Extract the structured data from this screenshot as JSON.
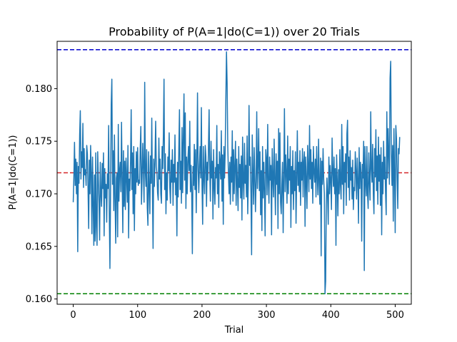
{
  "chart_data": {
    "type": "line",
    "title": "Probability of P(A=1|do(C=1)) over 20 Trials",
    "xlabel": "Trial",
    "ylabel": "P(A=1|do(C=1))",
    "xlim": [
      -25,
      525
    ],
    "ylim": [
      0.1595,
      0.1845
    ],
    "xticks": [
      0,
      100,
      200,
      300,
      400,
      500
    ],
    "yticks": [
      0.16,
      0.165,
      0.17,
      0.175,
      0.18
    ],
    "ytick_labels": [
      "0.160",
      "0.165",
      "0.170",
      "0.175",
      "0.180"
    ],
    "grid": false,
    "legend": "none",
    "series": [
      {
        "color": "#1f77b4",
        "x_start": 0,
        "x_step": 1,
        "y": [
          0.1692,
          0.1716,
          0.1749,
          0.1708,
          0.1733,
          0.17,
          0.173,
          0.1645,
          0.1726,
          0.171,
          0.1756,
          0.1779,
          0.1714,
          0.174,
          0.1725,
          0.1767,
          0.1706,
          0.1743,
          0.1718,
          0.1723,
          0.1708,
          0.1746,
          0.1738,
          0.1705,
          0.1667,
          0.1732,
          0.17,
          0.1746,
          0.172,
          0.1662,
          0.1735,
          0.169,
          0.1651,
          0.1718,
          0.1655,
          0.1739,
          0.1669,
          0.1651,
          0.174,
          0.1715,
          0.1691,
          0.1656,
          0.173,
          0.17,
          0.1688,
          0.1729,
          0.1705,
          0.1739,
          0.166,
          0.1724,
          0.1696,
          0.1709,
          0.1673,
          0.1719,
          0.1705,
          0.1765,
          0.1684,
          0.1629,
          0.1702,
          0.1785,
          0.1809,
          0.1709,
          0.1741,
          0.1684,
          0.1756,
          0.1694,
          0.1653,
          0.1715,
          0.172,
          0.1659,
          0.1766,
          0.1693,
          0.1722,
          0.173,
          0.1702,
          0.1768,
          0.1715,
          0.1663,
          0.1741,
          0.1688,
          0.1731,
          0.1685,
          0.1734,
          0.1716,
          0.1692,
          0.1746,
          0.1658,
          0.1714,
          0.1703,
          0.173,
          0.178,
          0.1704,
          0.1739,
          0.1681,
          0.1745,
          0.1665,
          0.1724,
          0.17,
          0.174,
          0.1711,
          0.1744,
          0.1708,
          0.1713,
          0.171,
          0.1742,
          0.1764,
          0.169,
          0.1717,
          0.1748,
          0.1723,
          0.1692,
          0.1806,
          0.1721,
          0.1707,
          0.1742,
          0.1687,
          0.167,
          0.174,
          0.1706,
          0.1681,
          0.1736,
          0.171,
          0.1772,
          0.1702,
          0.1648,
          0.1733,
          0.1707,
          0.1732,
          0.1769,
          0.1726,
          0.1719,
          0.1701,
          0.1694,
          0.1753,
          0.1714,
          0.1733,
          0.17,
          0.1691,
          0.1745,
          0.1724,
          0.1756,
          0.1809,
          0.1704,
          0.1738,
          0.1681,
          0.172,
          0.1694,
          0.1735,
          0.1722,
          0.1758,
          0.1706,
          0.1691,
          0.1732,
          0.1711,
          0.1742,
          0.1689,
          0.1728,
          0.1711,
          0.1756,
          0.1699,
          0.1715,
          0.166,
          0.173,
          0.1697,
          0.1742,
          0.178,
          0.1704,
          0.1731,
          0.1691,
          0.1763,
          0.1701,
          0.1754,
          0.1795,
          0.1713,
          0.1777,
          0.1686,
          0.1735,
          0.17,
          0.1731,
          0.1745,
          0.1722,
          0.1769,
          0.1702,
          0.1727,
          0.17,
          0.1643,
          0.1726,
          0.1708,
          0.1747,
          0.1704,
          0.1742,
          0.1682,
          0.1731,
          0.1796,
          0.1723,
          0.1701,
          0.1727,
          0.1745,
          0.1715,
          0.1782,
          0.1708,
          0.1671,
          0.1745,
          0.1716,
          0.17,
          0.1746,
          0.1736,
          0.1688,
          0.173,
          0.1713,
          0.1743,
          0.178,
          0.1722,
          0.1693,
          0.175,
          0.1715,
          0.1731,
          0.1676,
          0.1742,
          0.1707,
          0.169,
          0.1725,
          0.1715,
          0.1765,
          0.17,
          0.1728,
          0.1687,
          0.174,
          0.173,
          0.1714,
          0.176,
          0.1693,
          0.1737,
          0.1671,
          0.1745,
          0.1715,
          0.174,
          0.179,
          0.1835,
          0.1805,
          0.1745,
          0.172,
          0.17,
          0.173,
          0.169,
          0.1735,
          0.1711,
          0.176,
          0.1693,
          0.1742,
          0.17,
          0.1726,
          0.175,
          0.1689,
          0.1733,
          0.171,
          0.1684,
          0.1745,
          0.1706,
          0.1728,
          0.1696,
          0.1736,
          0.1675,
          0.1754,
          0.1712,
          0.1695,
          0.1748,
          0.171,
          0.1727,
          0.1697,
          0.1755,
          0.1681,
          0.1714,
          0.1784,
          0.1727,
          0.1735,
          0.17,
          0.1642,
          0.1756,
          0.1721,
          0.169,
          0.1744,
          0.1715,
          0.1683,
          0.1712,
          0.1778,
          0.1705,
          0.1728,
          0.1762,
          0.1703,
          0.174,
          0.168,
          0.1722,
          0.1665,
          0.1745,
          0.1696,
          0.173,
          0.1702,
          0.166,
          0.1742,
          0.1733,
          0.1699,
          0.1766,
          0.1711,
          0.1691,
          0.1735,
          0.1713,
          0.1727,
          0.1661,
          0.1743,
          0.1714,
          0.1697,
          0.1752,
          0.1714,
          0.168,
          0.1738,
          0.1709,
          0.1731,
          0.1667,
          0.1762,
          0.17,
          0.1758,
          0.1692,
          0.1681,
          0.1708,
          0.173,
          0.1663,
          0.1715,
          0.1781,
          0.1702,
          0.1737,
          0.1719,
          0.1691,
          0.1755,
          0.17,
          0.1733,
          0.1713,
          0.1745,
          0.1668,
          0.1726,
          0.17,
          0.1741,
          0.1685,
          0.1722,
          0.1703,
          0.174,
          0.1672,
          0.1715,
          0.176,
          0.1708,
          0.173,
          0.1702,
          0.1741,
          0.1689,
          0.173,
          0.1713,
          0.1743,
          0.1697,
          0.1731,
          0.174,
          0.1669,
          0.1735,
          0.1713,
          0.1686,
          0.1746,
          0.1724,
          0.1702,
          0.1765,
          0.1714,
          0.1742,
          0.1705,
          0.173,
          0.1691,
          0.1745,
          0.1721,
          0.1711,
          0.1733,
          0.1697,
          0.1745,
          0.1716,
          0.1699,
          0.1752,
          0.1711,
          0.169,
          0.1734,
          0.1641,
          0.1731,
          0.1709,
          0.1743,
          0.1714,
          0.17,
          0.1605,
          0.1617,
          0.169,
          0.1715,
          0.1698,
          0.1671,
          0.1735,
          0.17,
          0.1727,
          0.1712,
          0.1685,
          0.1753,
          0.1722,
          0.1707,
          0.1735,
          0.17,
          0.1724,
          0.1651,
          0.1737,
          0.1712,
          0.1679,
          0.1723,
          0.17,
          0.1742,
          0.1708,
          0.1695,
          0.1766,
          0.1709,
          0.1745,
          0.1681,
          0.173,
          0.1711,
          0.1738,
          0.1689,
          0.1757,
          0.177,
          0.1706,
          0.1735,
          0.1694,
          0.1741,
          0.1713,
          0.1725,
          0.1695,
          0.1732,
          0.1685,
          0.1706,
          0.1703,
          0.174,
          0.1722,
          0.1695,
          0.1734,
          0.1713,
          0.1672,
          0.1744,
          0.1705,
          0.173,
          0.1719,
          0.1655,
          0.1728,
          0.1715,
          0.175,
          0.1627,
          0.1745,
          0.1714,
          0.1698,
          0.1745,
          0.17,
          0.1686,
          0.1739,
          0.1712,
          0.1694,
          0.1778,
          0.1724,
          0.1711,
          0.1747,
          0.17,
          0.1681,
          0.1743,
          0.1716,
          0.1761,
          0.1703,
          0.1736,
          0.169,
          0.1754,
          0.1712,
          0.1737,
          0.1689,
          0.1744,
          0.1661,
          0.173,
          0.17,
          0.175,
          0.1714,
          0.1735,
          0.1702,
          0.168,
          0.1778,
          0.1715,
          0.1762,
          0.1738,
          0.1709,
          0.181,
          0.1826,
          0.1738,
          0.1708,
          0.1746,
          0.1674,
          0.1762,
          0.172,
          0.1663,
          0.1765,
          0.1752,
          0.1713,
          0.1686,
          0.1743,
          0.1738,
          0.1754
        ]
      }
    ],
    "reference_lines": [
      {
        "y": 0.1837,
        "color": "#0000cc",
        "style": "dashed"
      },
      {
        "y": 0.172,
        "color": "#d62728",
        "style": "dashed"
      },
      {
        "y": 0.1605,
        "color": "#008000",
        "style": "dashed"
      }
    ]
  }
}
